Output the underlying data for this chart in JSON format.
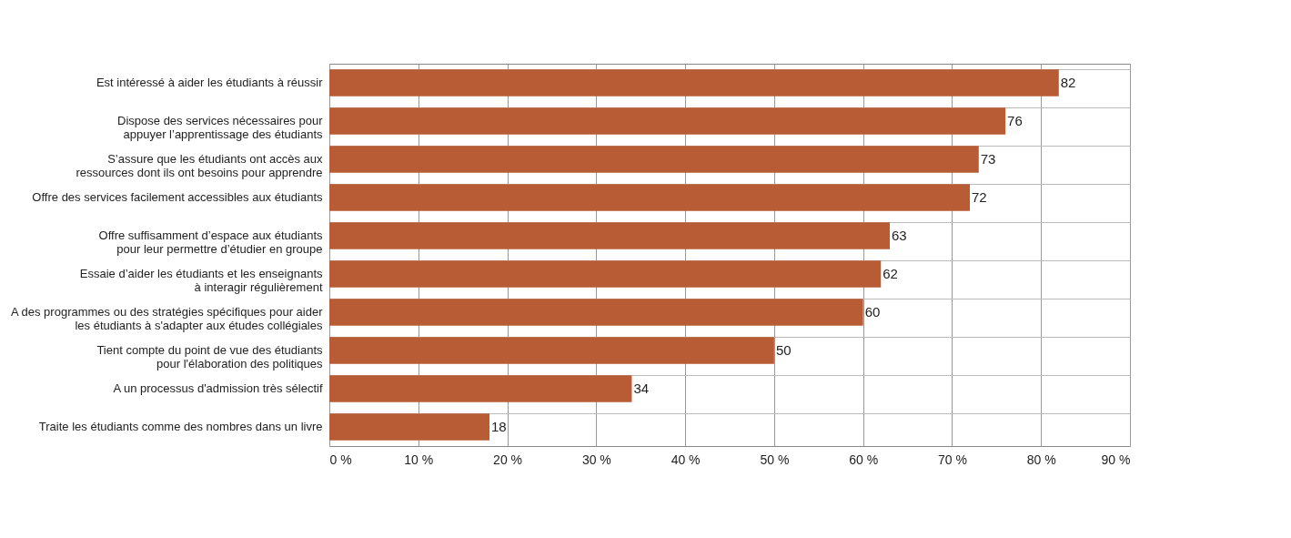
{
  "chart_data": {
    "type": "bar",
    "orientation": "horizontal",
    "categories": [
      "Est intéressé à aider les étudiants à réussir",
      "Dispose des services nécessaires pour\nappuyer l’apprentissage des étudiants",
      "S’assure que les étudiants ont accès aux\nressources dont ils ont besoins pour apprendre",
      "Offre des services facilement accessibles aux étudiants",
      "Offre suffisamment d’espace aux étudiants\npour leur permettre d’étudier en groupe",
      "Essaie d’aider les étudiants et les enseignants\nà interagir régulièrement",
      "A des programmes ou des stratégies spécifiques pour aider\nles étudiants à s'adapter aux études collégiales",
      "Tient compte du point de vue des étudiants\npour l'élaboration des politiques",
      "A un processus d'admission très sélectif",
      "Traite les étudiants comme des nombres dans un livre"
    ],
    "values": [
      82,
      76,
      73,
      72,
      63,
      62,
      60,
      50,
      34,
      18
    ],
    "color": "#b85c35",
    "xlim": [
      0,
      90
    ],
    "xticks": [
      {
        "value": 0,
        "label": "0 %"
      },
      {
        "value": 10,
        "label": "10 %"
      },
      {
        "value": 20,
        "label": "20 %"
      },
      {
        "value": 30,
        "label": "30 %"
      },
      {
        "value": 40,
        "label": "40 %"
      },
      {
        "value": 50,
        "label": "50 %"
      },
      {
        "value": 60,
        "label": "60 %"
      },
      {
        "value": 70,
        "label": "70 %"
      },
      {
        "value": 80,
        "label": "80 %"
      },
      {
        "value": 90,
        "label": "90 %"
      }
    ],
    "grid": true,
    "data_labels": true
  }
}
